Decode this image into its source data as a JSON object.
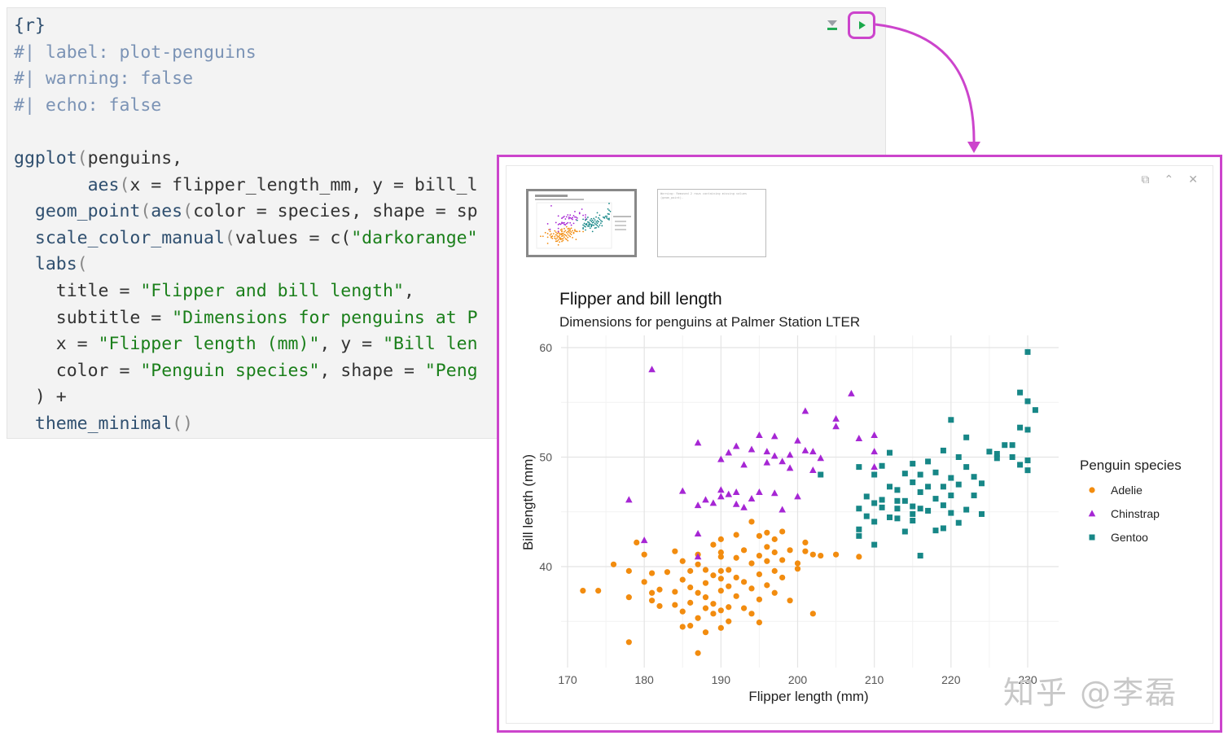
{
  "code_lines": [
    [
      {
        "t": "{r}",
        "c": "k"
      }
    ],
    [
      {
        "t": "#| label: plot-penguins",
        "c": "c"
      }
    ],
    [
      {
        "t": "#| warning: false",
        "c": "c"
      }
    ],
    [
      {
        "t": "#| echo: false",
        "c": "c"
      }
    ],
    [
      {
        "t": "",
        "c": ""
      }
    ],
    [
      {
        "t": "ggplot",
        "c": "k"
      },
      {
        "t": "(",
        "c": "p"
      },
      {
        "t": "penguins,",
        "c": ""
      }
    ],
    [
      {
        "t": "       aes",
        "c": "k"
      },
      {
        "t": "(",
        "c": "p"
      },
      {
        "t": "x = flipper_length_mm, y = bill_l",
        "c": ""
      }
    ],
    [
      {
        "t": "  geom_point",
        "c": "k"
      },
      {
        "t": "(",
        "c": "p"
      },
      {
        "t": "aes",
        "c": "k"
      },
      {
        "t": "(",
        "c": "p"
      },
      {
        "t": "color = species, shape = sp",
        "c": ""
      }
    ],
    [
      {
        "t": "  scale_color_manual",
        "c": "k"
      },
      {
        "t": "(",
        "c": "p"
      },
      {
        "t": "values = c(",
        "c": ""
      },
      {
        "t": "\"darkorange\"",
        "c": "s"
      }
    ],
    [
      {
        "t": "  labs",
        "c": "k"
      },
      {
        "t": "(",
        "c": "p"
      }
    ],
    [
      {
        "t": "    title = ",
        "c": ""
      },
      {
        "t": "\"Flipper and bill length\"",
        "c": "s"
      },
      {
        "t": ",",
        "c": ""
      }
    ],
    [
      {
        "t": "    subtitle = ",
        "c": ""
      },
      {
        "t": "\"Dimensions for penguins at P",
        "c": "s"
      }
    ],
    [
      {
        "t": "    x = ",
        "c": ""
      },
      {
        "t": "\"Flipper length (mm)\"",
        "c": "s"
      },
      {
        "t": ", y = ",
        "c": ""
      },
      {
        "t": "\"Bill len",
        "c": "s"
      }
    ],
    [
      {
        "t": "    color = ",
        "c": ""
      },
      {
        "t": "\"Penguin species\"",
        "c": "s"
      },
      {
        "t": ", shape = ",
        "c": ""
      },
      {
        "t": "\"Peng",
        "c": "s"
      }
    ],
    [
      {
        "t": "  ) +",
        "c": ""
      }
    ],
    [
      {
        "t": "  theme_minimal",
        "c": "k"
      },
      {
        "t": "()",
        "c": "p"
      }
    ]
  ],
  "watermark": "知乎 @李磊",
  "thumb2_text": "Warning: Removed 2 rows containing missing values (geom_point).",
  "chart_data": {
    "type": "scatter",
    "title": "Flipper and bill length",
    "subtitle": "Dimensions for penguins at Palmer Station LTER",
    "xlabel": "Flipper length (mm)",
    "ylabel": "Bill length (mm)",
    "xlim": [
      170,
      231
    ],
    "ylim": [
      32,
      60
    ],
    "xticks": [
      170,
      180,
      190,
      200,
      210,
      220,
      230
    ],
    "xtick_labels": [
      "170",
      "180",
      "190",
      "200",
      "210",
      "220",
      "230"
    ],
    "yticks": [
      40,
      50,
      60
    ],
    "ytick_labels": [
      "40",
      "50",
      "60"
    ],
    "grid": true,
    "legend_title": "Penguin species",
    "legend_position": "right",
    "series": [
      {
        "name": "Adelie",
        "color": "#f28c0f",
        "shape": "circle",
        "points": [
          [
            172,
            37.8
          ],
          [
            174,
            37.8
          ],
          [
            176,
            40.2
          ],
          [
            178,
            37.2
          ],
          [
            178,
            39.6
          ],
          [
            178,
            33.1
          ],
          [
            179,
            42.2
          ],
          [
            180,
            38.6
          ],
          [
            180,
            41.1
          ],
          [
            181,
            37.6
          ],
          [
            181,
            39.4
          ],
          [
            181,
            36.9
          ],
          [
            182,
            37.9
          ],
          [
            182,
            36.4
          ],
          [
            183,
            39.5
          ],
          [
            184,
            41.4
          ],
          [
            184,
            37.7
          ],
          [
            184,
            36.5
          ],
          [
            185,
            38.8
          ],
          [
            185,
            40.5
          ],
          [
            185,
            35.9
          ],
          [
            185,
            34.5
          ],
          [
            186,
            39.6
          ],
          [
            186,
            38.1
          ],
          [
            186,
            36.7
          ],
          [
            186,
            34.6
          ],
          [
            187,
            40.2
          ],
          [
            187,
            37.6
          ],
          [
            187,
            35.3
          ],
          [
            187,
            32.1
          ],
          [
            187,
            41.1
          ],
          [
            188,
            36.2
          ],
          [
            188,
            39.7
          ],
          [
            188,
            38.5
          ],
          [
            188,
            37.2
          ],
          [
            188,
            34.0
          ],
          [
            189,
            42.0
          ],
          [
            189,
            39.2
          ],
          [
            189,
            36.6
          ],
          [
            189,
            35.7
          ],
          [
            190,
            40.9
          ],
          [
            190,
            39.6
          ],
          [
            190,
            38.9
          ],
          [
            190,
            37.8
          ],
          [
            190,
            36.0
          ],
          [
            190,
            34.4
          ],
          [
            190,
            42.5
          ],
          [
            190,
            41.3
          ],
          [
            191,
            39.7
          ],
          [
            191,
            38.2
          ],
          [
            191,
            36.3
          ],
          [
            191,
            35.0
          ],
          [
            192,
            40.8
          ],
          [
            192,
            39.0
          ],
          [
            192,
            37.3
          ],
          [
            192,
            42.9
          ],
          [
            193,
            41.5
          ],
          [
            193,
            38.6
          ],
          [
            193,
            36.2
          ],
          [
            194,
            40.3
          ],
          [
            194,
            38.0
          ],
          [
            194,
            35.7
          ],
          [
            194,
            44.1
          ],
          [
            195,
            41.0
          ],
          [
            195,
            39.3
          ],
          [
            195,
            37.0
          ],
          [
            195,
            34.9
          ],
          [
            195,
            42.8
          ],
          [
            196,
            40.5
          ],
          [
            196,
            38.3
          ],
          [
            196,
            43.1
          ],
          [
            196,
            41.8
          ],
          [
            197,
            41.3
          ],
          [
            197,
            39.6
          ],
          [
            197,
            37.6
          ],
          [
            197,
            42.5
          ],
          [
            198,
            43.2
          ],
          [
            198,
            40.6
          ],
          [
            198,
            39.0
          ],
          [
            199,
            41.5
          ],
          [
            199,
            36.9
          ],
          [
            200,
            40.3
          ],
          [
            200,
            39.8
          ],
          [
            201,
            41.4
          ],
          [
            201,
            42.2
          ],
          [
            202,
            41.1
          ],
          [
            202,
            35.7
          ],
          [
            203,
            41.0
          ],
          [
            205,
            41.1
          ],
          [
            208,
            40.9
          ]
        ]
      },
      {
        "name": "Chinstrap",
        "color": "#a626d4",
        "shape": "triangle",
        "points": [
          [
            178,
            46.1
          ],
          [
            180,
            42.4
          ],
          [
            181,
            58.0
          ],
          [
            185,
            46.9
          ],
          [
            187,
            51.3
          ],
          [
            187,
            45.6
          ],
          [
            187,
            43.0
          ],
          [
            187,
            40.9
          ],
          [
            188,
            46.1
          ],
          [
            189,
            45.8
          ],
          [
            190,
            46.4
          ],
          [
            190,
            47.0
          ],
          [
            190,
            49.8
          ],
          [
            191,
            46.6
          ],
          [
            191,
            50.4
          ],
          [
            192,
            45.7
          ],
          [
            192,
            46.8
          ],
          [
            192,
            51.0
          ],
          [
            193,
            45.4
          ],
          [
            193,
            49.3
          ],
          [
            194,
            46.2
          ],
          [
            194,
            50.7
          ],
          [
            195,
            46.8
          ],
          [
            195,
            52.0
          ],
          [
            196,
            49.5
          ],
          [
            196,
            50.5
          ],
          [
            197,
            46.7
          ],
          [
            197,
            50.1
          ],
          [
            197,
            51.9
          ],
          [
            198,
            45.2
          ],
          [
            198,
            49.6
          ],
          [
            199,
            49.0
          ],
          [
            199,
            50.2
          ],
          [
            200,
            46.4
          ],
          [
            200,
            51.5
          ],
          [
            201,
            50.6
          ],
          [
            201,
            54.2
          ],
          [
            202,
            48.8
          ],
          [
            202,
            50.5
          ],
          [
            203,
            49.9
          ],
          [
            205,
            52.8
          ],
          [
            205,
            53.5
          ],
          [
            207,
            55.8
          ],
          [
            208,
            51.7
          ],
          [
            210,
            52.0
          ],
          [
            210,
            49.1
          ],
          [
            210,
            50.5
          ]
        ]
      },
      {
        "name": "Gentoo",
        "color": "#178787",
        "shape": "square",
        "points": [
          [
            203,
            48.4
          ],
          [
            208,
            45.3
          ],
          [
            208,
            43.4
          ],
          [
            208,
            49.1
          ],
          [
            208,
            42.8
          ],
          [
            209,
            44.6
          ],
          [
            209,
            46.4
          ],
          [
            210,
            48.4
          ],
          [
            210,
            45.8
          ],
          [
            210,
            44.1
          ],
          [
            210,
            42.0
          ],
          [
            211,
            46.1
          ],
          [
            211,
            49.2
          ],
          [
            212,
            44.5
          ],
          [
            212,
            47.3
          ],
          [
            212,
            50.4
          ],
          [
            213,
            44.4
          ],
          [
            213,
            47.0
          ],
          [
            213,
            45.3
          ],
          [
            214,
            46.0
          ],
          [
            214,
            48.5
          ],
          [
            214,
            43.2
          ],
          [
            215,
            45.5
          ],
          [
            215,
            47.7
          ],
          [
            215,
            49.4
          ],
          [
            215,
            44.2
          ],
          [
            216,
            41.0
          ],
          [
            216,
            46.8
          ],
          [
            216,
            48.4
          ],
          [
            216,
            45.3
          ],
          [
            217,
            47.3
          ],
          [
            217,
            45.1
          ],
          [
            217,
            49.6
          ],
          [
            218,
            46.2
          ],
          [
            218,
            43.3
          ],
          [
            218,
            48.6
          ],
          [
            219,
            47.3
          ],
          [
            219,
            45.6
          ],
          [
            219,
            50.6
          ],
          [
            220,
            48.1
          ],
          [
            220,
            44.9
          ],
          [
            220,
            46.5
          ],
          [
            220,
            53.4
          ],
          [
            221,
            50.0
          ],
          [
            221,
            44.0
          ],
          [
            221,
            47.5
          ],
          [
            222,
            49.1
          ],
          [
            222,
            45.2
          ],
          [
            222,
            51.8
          ],
          [
            223,
            46.5
          ],
          [
            223,
            48.2
          ],
          [
            224,
            47.6
          ],
          [
            224,
            44.8
          ],
          [
            225,
            50.5
          ],
          [
            226,
            49.9
          ],
          [
            226,
            50.3
          ],
          [
            227,
            51.1
          ],
          [
            228,
            50.0
          ],
          [
            230,
            48.8
          ],
          [
            230,
            52.5
          ],
          [
            230,
            49.7
          ],
          [
            230,
            59.6
          ],
          [
            230,
            55.1
          ],
          [
            231,
            54.3
          ],
          [
            229,
            55.9
          ],
          [
            229,
            52.7
          ],
          [
            229,
            49.3
          ],
          [
            228,
            51.1
          ],
          [
            215,
            44.8
          ],
          [
            213,
            46.0
          ],
          [
            211,
            45.4
          ],
          [
            219,
            43.5
          ]
        ]
      }
    ]
  }
}
